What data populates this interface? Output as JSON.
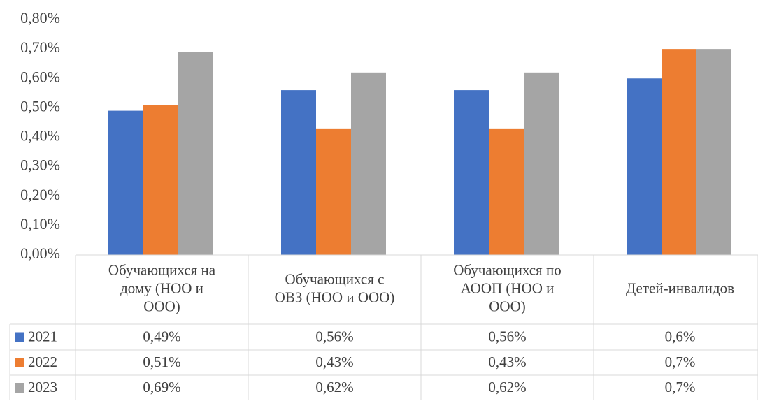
{
  "chart_data": {
    "type": "bar",
    "categories": [
      [
        "Обучающихся на",
        "дому (НОО и",
        "ООО)"
      ],
      [
        "Обучающихся с",
        "ОВЗ (НОО и ООО)"
      ],
      [
        "Обучающихся по",
        "АООП (НОО и",
        "ООО)"
      ],
      [
        "Детей-инвалидов"
      ]
    ],
    "series": [
      {
        "name": "2021",
        "color": "#4472C4",
        "values": [
          0.49,
          0.56,
          0.56,
          0.6
        ],
        "labels": [
          "0,49%",
          "0,56%",
          "0,56%",
          "0,6%"
        ]
      },
      {
        "name": "2022",
        "color": "#ED7D31",
        "values": [
          0.51,
          0.43,
          0.43,
          0.7
        ],
        "labels": [
          "0,51%",
          "0,43%",
          "0,43%",
          "0,7%"
        ]
      },
      {
        "name": "2023",
        "color": "#A5A5A5",
        "values": [
          0.69,
          0.62,
          0.62,
          0.7
        ],
        "labels": [
          "0,69%",
          "0,62%",
          "0,62%",
          "0,7%"
        ]
      }
    ],
    "ylim": [
      0,
      0.8
    ],
    "yticks": [
      "0,00%",
      "0,10%",
      "0,20%",
      "0,30%",
      "0,40%",
      "0,50%",
      "0,60%",
      "0,70%",
      "0,80%"
    ],
    "grid": false,
    "legend": "data-table"
  }
}
